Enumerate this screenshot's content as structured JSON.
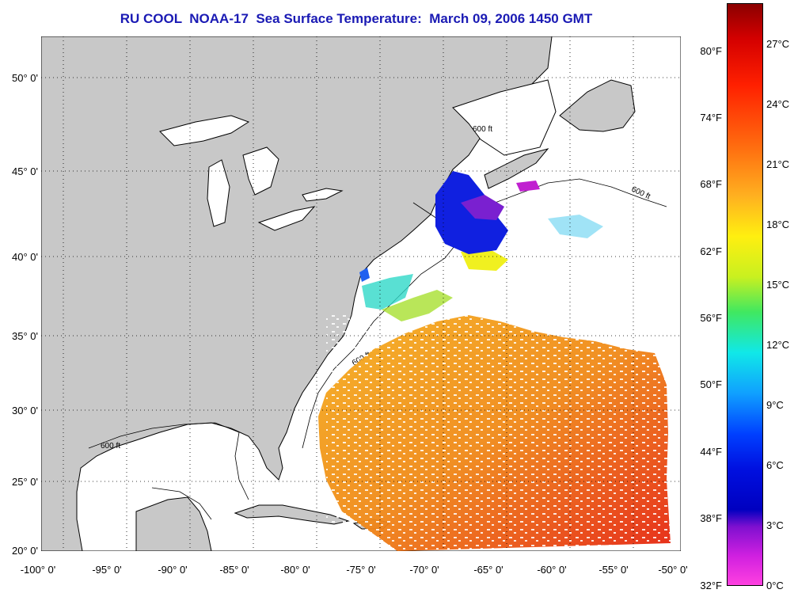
{
  "title": "RU COOL  NOAA-17  Sea Surface Temperature:  March 09, 2006 1450 GMT",
  "map": {
    "lon_ticks": [
      "-100° 0'",
      "-95° 0'",
      "-90° 0'",
      "-85° 0'",
      "-80° 0'",
      "-75° 0'",
      "-70° 0'",
      "-65° 0'",
      "-60° 0'",
      "-55° 0'",
      "-50° 0'"
    ],
    "lat_ticks": [
      "50° 0'",
      "45° 0'",
      "40° 0'",
      "35° 0'",
      "30° 0'",
      "25° 0'",
      "20° 0'"
    ],
    "contour_label": "600 ft",
    "colors": {
      "land": "#c8c8c8",
      "ocean": "#ffffff",
      "coast": "#000000"
    }
  },
  "colorbar": {
    "fahrenheit_ticks": [
      "80°F",
      "74°F",
      "68°F",
      "62°F",
      "56°F",
      "50°F",
      "44°F",
      "38°F",
      "32°F"
    ],
    "celsius_ticks": [
      "27°C",
      "24°C",
      "21°C",
      "18°C",
      "15°C",
      "12°C",
      "9°C",
      "6°C",
      "3°C",
      "0°C"
    ],
    "range_c": [
      0,
      29
    ]
  }
}
